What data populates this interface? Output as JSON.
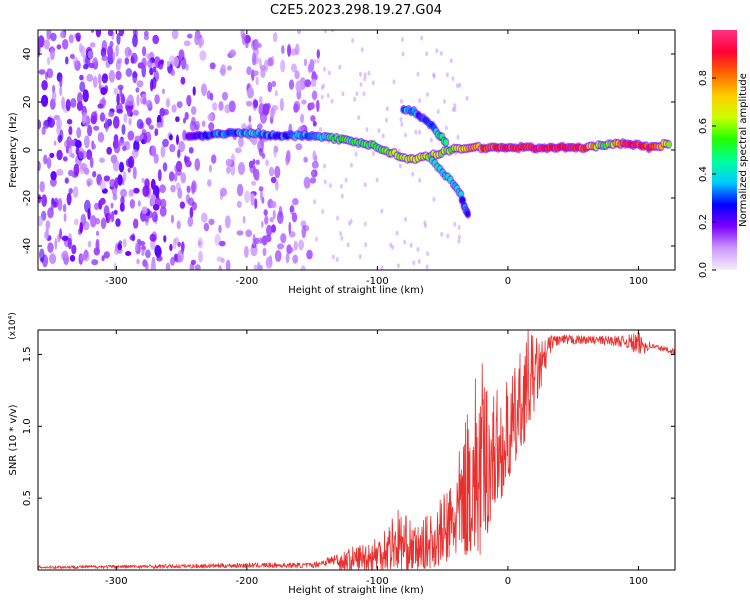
{
  "figure_title": "C2E5.2023.298.19.27.G04",
  "chart_data": [
    {
      "type": "heatmap",
      "title": "",
      "xlabel": "Height of straight line (km)",
      "ylabel": "Frequency (Hz)",
      "xlim": [
        -360,
        128
      ],
      "ylim": [
        -50,
        50
      ],
      "x_ticks": [
        -300,
        -200,
        -100,
        0,
        100
      ],
      "y_ticks": [
        -40,
        -20,
        0,
        20,
        40
      ],
      "grid": false,
      "colorbar": {
        "label": "Normalized spectral amplitude",
        "range": [
          0.0,
          1.0
        ],
        "ticks": [
          "0.0",
          "0.2",
          "0.4",
          "0.6",
          "0.8"
        ],
        "colormap": [
          "#f5eefc",
          "#cc99ff",
          "#7a00ff",
          "#0000ff",
          "#00ccff",
          "#00ff99",
          "#22ff00",
          "#ccff00",
          "#ffcc00",
          "#ff6600",
          "#ff0033",
          "#ff3388"
        ]
      },
      "features": {
        "noise_region_x": [
          -360,
          -150
        ],
        "main_ridge": [
          {
            "x": -245,
            "y": 6,
            "amp": 0.2
          },
          {
            "x": -230,
            "y": 6,
            "amp": 0.3
          },
          {
            "x": -210,
            "y": 7,
            "amp": 0.35
          },
          {
            "x": -195,
            "y": 7,
            "amp": 0.4
          },
          {
            "x": -180,
            "y": 6,
            "amp": 0.3
          },
          {
            "x": -165,
            "y": 6,
            "amp": 0.3
          },
          {
            "x": -150,
            "y": 6,
            "amp": 0.35
          },
          {
            "x": -135,
            "y": 5,
            "amp": 0.45
          },
          {
            "x": -120,
            "y": 4,
            "amp": 0.5
          },
          {
            "x": -105,
            "y": 2,
            "amp": 0.5
          },
          {
            "x": -95,
            "y": 0,
            "amp": 0.55
          },
          {
            "x": -85,
            "y": -2,
            "amp": 0.6
          },
          {
            "x": -75,
            "y": -4,
            "amp": 0.65
          },
          {
            "x": -65,
            "y": -3,
            "amp": 0.6
          },
          {
            "x": -55,
            "y": -2,
            "amp": 0.65
          },
          {
            "x": -45,
            "y": 0,
            "amp": 0.6
          },
          {
            "x": -30,
            "y": 1,
            "amp": 0.75
          },
          {
            "x": -15,
            "y": 1,
            "amp": 0.85
          },
          {
            "x": 0,
            "y": 1,
            "amp": 0.9
          },
          {
            "x": 20,
            "y": 1,
            "amp": 0.92
          },
          {
            "x": 40,
            "y": 1,
            "amp": 0.92
          },
          {
            "x": 60,
            "y": 1,
            "amp": 0.85
          },
          {
            "x": 75,
            "y": 2,
            "amp": 0.5
          },
          {
            "x": 90,
            "y": 3,
            "amp": 0.9
          },
          {
            "x": 110,
            "y": 1,
            "amp": 0.9
          },
          {
            "x": 125,
            "y": 3,
            "amp": 0.6
          }
        ],
        "upper_branch": [
          {
            "x": -80,
            "y": 17,
            "amp": 0.35
          },
          {
            "x": -72,
            "y": 16,
            "amp": 0.3
          },
          {
            "x": -65,
            "y": 13,
            "amp": 0.3
          },
          {
            "x": -58,
            "y": 10,
            "amp": 0.35
          },
          {
            "x": -52,
            "y": 6,
            "amp": 0.45
          },
          {
            "x": -46,
            "y": 2,
            "amp": 0.55
          }
        ],
        "lower_branch": [
          {
            "x": -58,
            "y": -4,
            "amp": 0.4
          },
          {
            "x": -50,
            "y": -9,
            "amp": 0.4
          },
          {
            "x": -42,
            "y": -14,
            "amp": 0.4
          },
          {
            "x": -36,
            "y": -19,
            "amp": 0.35
          },
          {
            "x": -33,
            "y": -24,
            "amp": 0.3
          },
          {
            "x": -30,
            "y": -28,
            "amp": 0.25
          }
        ]
      }
    },
    {
      "type": "line",
      "title": "",
      "xlabel": "Height of straight line (km)",
      "ylabel": "SNR (10 * v/v)",
      "y_multiplier": "(x10⁴)",
      "xlim": [
        -360,
        128
      ],
      "ylim": [
        0,
        1.67
      ],
      "x_ticks": [
        -300,
        -200,
        -100,
        0,
        100
      ],
      "y_ticks": [
        0.5,
        1.0,
        1.5
      ],
      "y_tick_labels": [
        "0.5",
        "1.0",
        "1.5"
      ],
      "grid": false,
      "series": [
        {
          "color": "#e8302e",
          "envelope": [
            {
              "x": -360,
              "low": 0.0,
              "high": 0.03
            },
            {
              "x": -250,
              "low": 0.0,
              "high": 0.04
            },
            {
              "x": -200,
              "low": 0.0,
              "high": 0.05
            },
            {
              "x": -150,
              "low": 0.0,
              "high": 0.05
            },
            {
              "x": -130,
              "low": 0.0,
              "high": 0.12
            },
            {
              "x": -110,
              "low": 0.0,
              "high": 0.2
            },
            {
              "x": -100,
              "low": 0.0,
              "high": 0.25
            },
            {
              "x": -85,
              "low": 0.0,
              "high": 0.45
            },
            {
              "x": -70,
              "low": 0.0,
              "high": 0.3
            },
            {
              "x": -55,
              "low": 0.02,
              "high": 0.45
            },
            {
              "x": -45,
              "low": 0.05,
              "high": 0.6
            },
            {
              "x": -35,
              "low": 0.1,
              "high": 0.9
            },
            {
              "x": -28,
              "low": 0.1,
              "high": 1.35
            },
            {
              "x": -20,
              "low": 0.05,
              "high": 1.45
            },
            {
              "x": -12,
              "low": 0.4,
              "high": 1.3
            },
            {
              "x": -5,
              "low": 0.5,
              "high": 1.25
            },
            {
              "x": 5,
              "low": 0.7,
              "high": 1.4
            },
            {
              "x": 15,
              "low": 0.95,
              "high": 1.68
            },
            {
              "x": 25,
              "low": 1.25,
              "high": 1.6
            },
            {
              "x": 35,
              "low": 1.52,
              "high": 1.64
            },
            {
              "x": 60,
              "low": 1.55,
              "high": 1.63
            },
            {
              "x": 90,
              "low": 1.52,
              "high": 1.63
            },
            {
              "x": 100,
              "low": 1.4,
              "high": 1.66
            },
            {
              "x": 110,
              "low": 1.52,
              "high": 1.58
            },
            {
              "x": 128,
              "low": 1.48,
              "high": 1.54
            }
          ]
        }
      ]
    }
  ]
}
